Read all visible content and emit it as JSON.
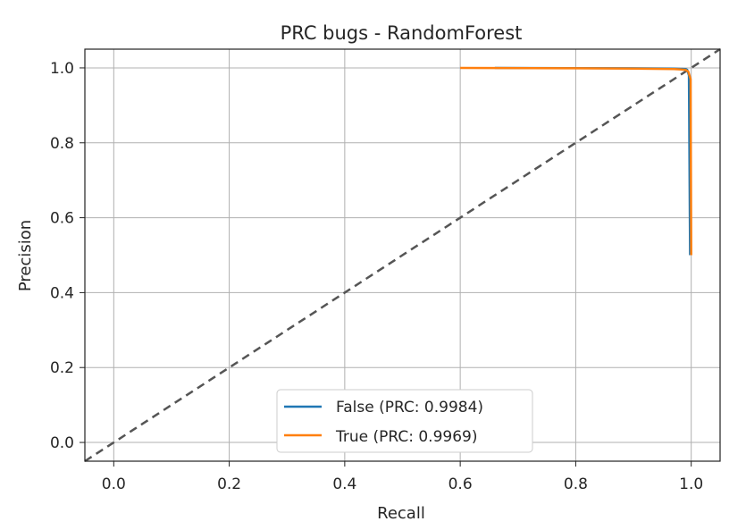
{
  "chart_data": {
    "type": "line",
    "title": "PRC bugs - RandomForest",
    "xlabel": "Recall",
    "ylabel": "Precision",
    "xlim": [
      -0.05,
      1.05
    ],
    "ylim": [
      -0.05,
      1.05
    ],
    "xticks": [
      0.0,
      0.2,
      0.4,
      0.6,
      0.8,
      1.0
    ],
    "xtick_labels": [
      "0.0",
      "0.2",
      "0.4",
      "0.6",
      "0.8",
      "1.0"
    ],
    "yticks": [
      0.0,
      0.2,
      0.4,
      0.6,
      0.8,
      1.0
    ],
    "ytick_labels": [
      "0.0",
      "0.2",
      "0.4",
      "0.6",
      "0.8",
      "1.0"
    ],
    "grid": true,
    "legend_position": "bottom-center",
    "series": [
      {
        "name": "False (PRC: 0.9984)",
        "color": "#1f77b4",
        "x": [
          0.66,
          0.9,
          0.97,
          0.99,
          0.993,
          0.996,
          0.998
        ],
        "y": [
          1.0,
          0.999,
          0.998,
          0.997,
          0.995,
          0.98,
          0.5
        ]
      },
      {
        "name": "True (PRC: 0.9969)",
        "color": "#ff7f0e",
        "x": [
          0.6,
          0.8,
          0.9,
          0.97,
          0.99,
          0.995,
          0.999,
          1.0
        ],
        "y": [
          1.0,
          0.999,
          0.998,
          0.997,
          0.995,
          0.99,
          0.97,
          0.5
        ]
      }
    ],
    "reference_line": {
      "x": [
        -0.05,
        1.05
      ],
      "y": [
        -0.05,
        1.05
      ],
      "color": "#555555",
      "style": "dashed"
    }
  }
}
